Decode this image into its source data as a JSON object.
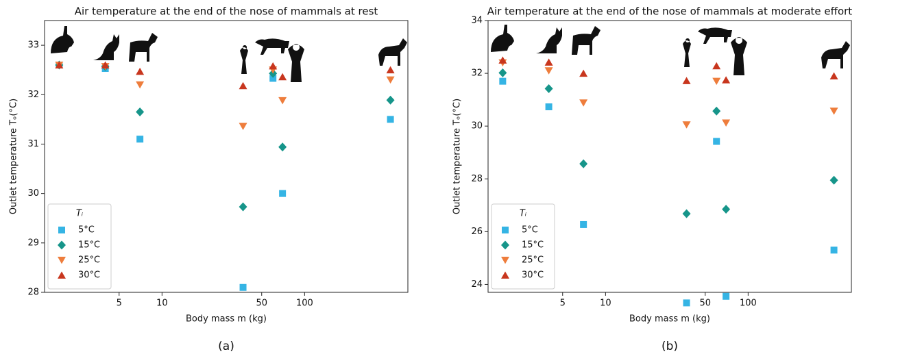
{
  "chart_data": [
    {
      "type": "scatter",
      "title": "Air temperature at the end of the nose of mammals at rest",
      "x_label": "Body mass m (kg)",
      "y_label": "Outlet temperature Tₒ(°C)",
      "caption": "(a)",
      "xscale": "log",
      "xlim": [
        1.5,
        530
      ],
      "ylim": [
        28,
        33.5
      ],
      "xticks": [
        5,
        10,
        50,
        100
      ],
      "yticks": [
        28,
        29,
        30,
        31,
        32,
        33
      ],
      "legend_title": "Tᵢ",
      "legend": "lower left",
      "x": [
        1.9,
        4,
        7,
        37,
        60,
        70,
        400
      ],
      "series": [
        {
          "name": "5°C",
          "color": "#35b4e4",
          "marker": "square",
          "values": [
            32.6,
            32.53,
            31.1,
            28.1,
            32.33,
            30.0,
            31.5
          ]
        },
        {
          "name": "15°C",
          "color": "#16958a",
          "marker": "diamond",
          "values": [
            32.6,
            32.57,
            31.65,
            29.73,
            32.43,
            30.94,
            31.89
          ]
        },
        {
          "name": "25°C",
          "color": "#ee7d3c",
          "marker": "triangle-down",
          "values": [
            32.6,
            32.57,
            32.2,
            31.36,
            32.5,
            31.88,
            32.3
          ]
        },
        {
          "name": "30°C",
          "color": "#c8361e",
          "marker": "triangle-up",
          "values": [
            32.6,
            32.6,
            32.47,
            32.18,
            32.58,
            32.36,
            32.5
          ]
        }
      ]
    },
    {
      "type": "scatter",
      "title": "Air temperature at the end of the nose of mammals at moderate effort",
      "x_label": "Body mass m (kg)",
      "y_label": "Outlet temperature Tₒ(°C)",
      "caption": "(b)",
      "xscale": "log",
      "xlim": [
        1.5,
        530
      ],
      "ylim": [
        23.7,
        34
      ],
      "xticks": [
        5,
        10,
        50,
        100
      ],
      "yticks": [
        24,
        26,
        28,
        30,
        32,
        34
      ],
      "legend_title": "Tᵢ",
      "legend": "lower left",
      "x": [
        1.9,
        4,
        7,
        37,
        60,
        70,
        400
      ],
      "series": [
        {
          "name": "5°C",
          "color": "#35b4e4",
          "marker": "square",
          "values": [
            31.7,
            30.73,
            26.27,
            23.3,
            29.42,
            23.55,
            25.3
          ]
        },
        {
          "name": "15°C",
          "color": "#16958a",
          "marker": "diamond",
          "values": [
            32.02,
            31.42,
            28.57,
            26.68,
            30.57,
            26.85,
            27.95
          ]
        },
        {
          "name": "25°C",
          "color": "#ee7d3c",
          "marker": "triangle-down",
          "values": [
            32.4,
            32.1,
            30.88,
            30.05,
            31.7,
            30.12,
            30.57
          ]
        },
        {
          "name": "30°C",
          "color": "#c8361e",
          "marker": "triangle-up",
          "values": [
            32.5,
            32.42,
            32.0,
            31.72,
            32.28,
            31.75,
            31.9
          ]
        }
      ]
    }
  ]
}
